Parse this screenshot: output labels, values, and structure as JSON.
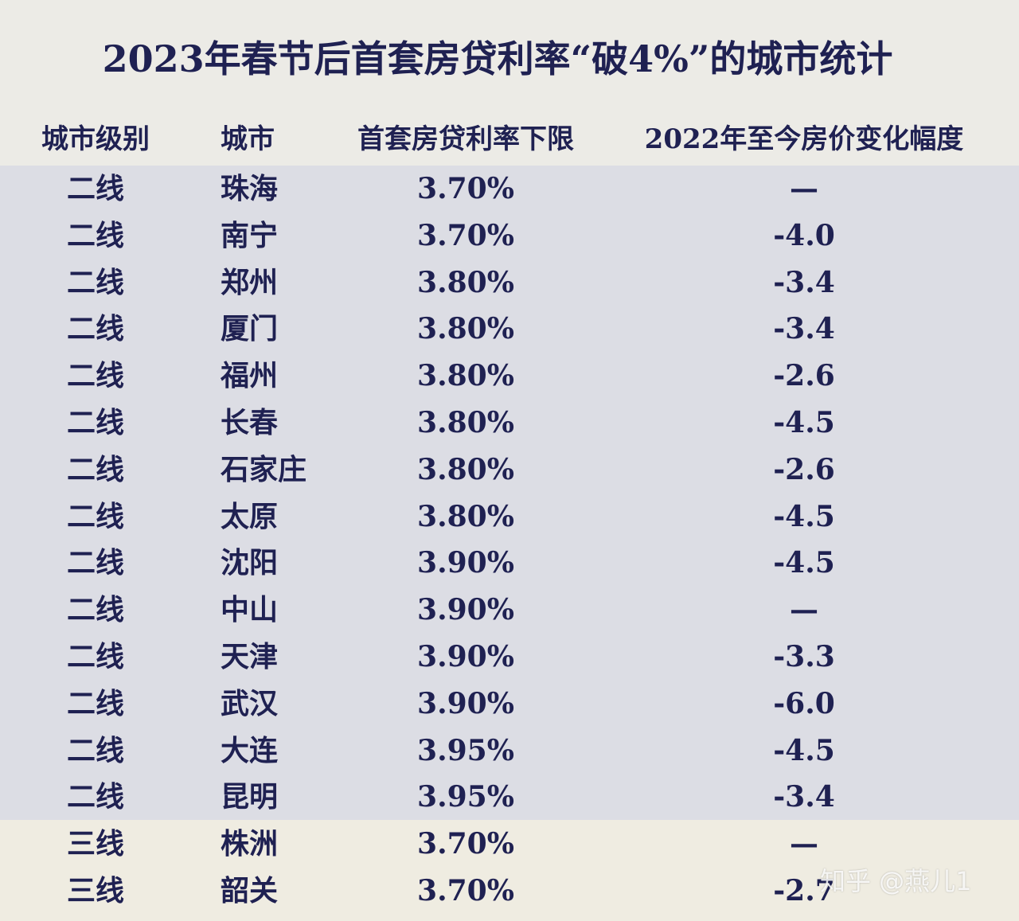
{
  "title": "2023年春节后首套房贷利率“破4%”的城市统计",
  "table": {
    "header": [
      "城市级别",
      "城市",
      "首套房贷利率下限",
      "2022年至今房价变化幅度"
    ],
    "rows": [
      [
        "二线",
        "珠海",
        "3.70%",
        "—"
      ],
      [
        "二线",
        "南宁",
        "3.70%",
        "-4.0"
      ],
      [
        "二线",
        "郑州",
        "3.80%",
        "-3.4"
      ],
      [
        "二线",
        "厦门",
        "3.80%",
        "-3.4"
      ],
      [
        "二线",
        "福州",
        "3.80%",
        "-2.6"
      ],
      [
        "二线",
        "长春",
        "3.80%",
        "-4.5"
      ],
      [
        "二线",
        "石家庄",
        "3.80%",
        "-2.6"
      ],
      [
        "二线",
        "太原",
        "3.80%",
        "-4.5"
      ],
      [
        "二线",
        "沈阳",
        "3.90%",
        "-4.5"
      ],
      [
        "二线",
        "中山",
        "3.90%",
        "—"
      ],
      [
        "二线",
        "天津",
        "3.90%",
        "-3.3"
      ],
      [
        "二线",
        "武汉",
        "3.90%",
        "-6.0"
      ],
      [
        "二线",
        "大连",
        "3.95%",
        "-4.5"
      ],
      [
        "二线",
        "昆明",
        "3.95%",
        "-3.4"
      ],
      [
        "三线",
        "株洲",
        "3.70%",
        "—"
      ],
      [
        "三线",
        "韶关",
        "3.70%",
        "-2.7"
      ]
    ]
  },
  "watermark": "知乎 @燕儿1"
}
